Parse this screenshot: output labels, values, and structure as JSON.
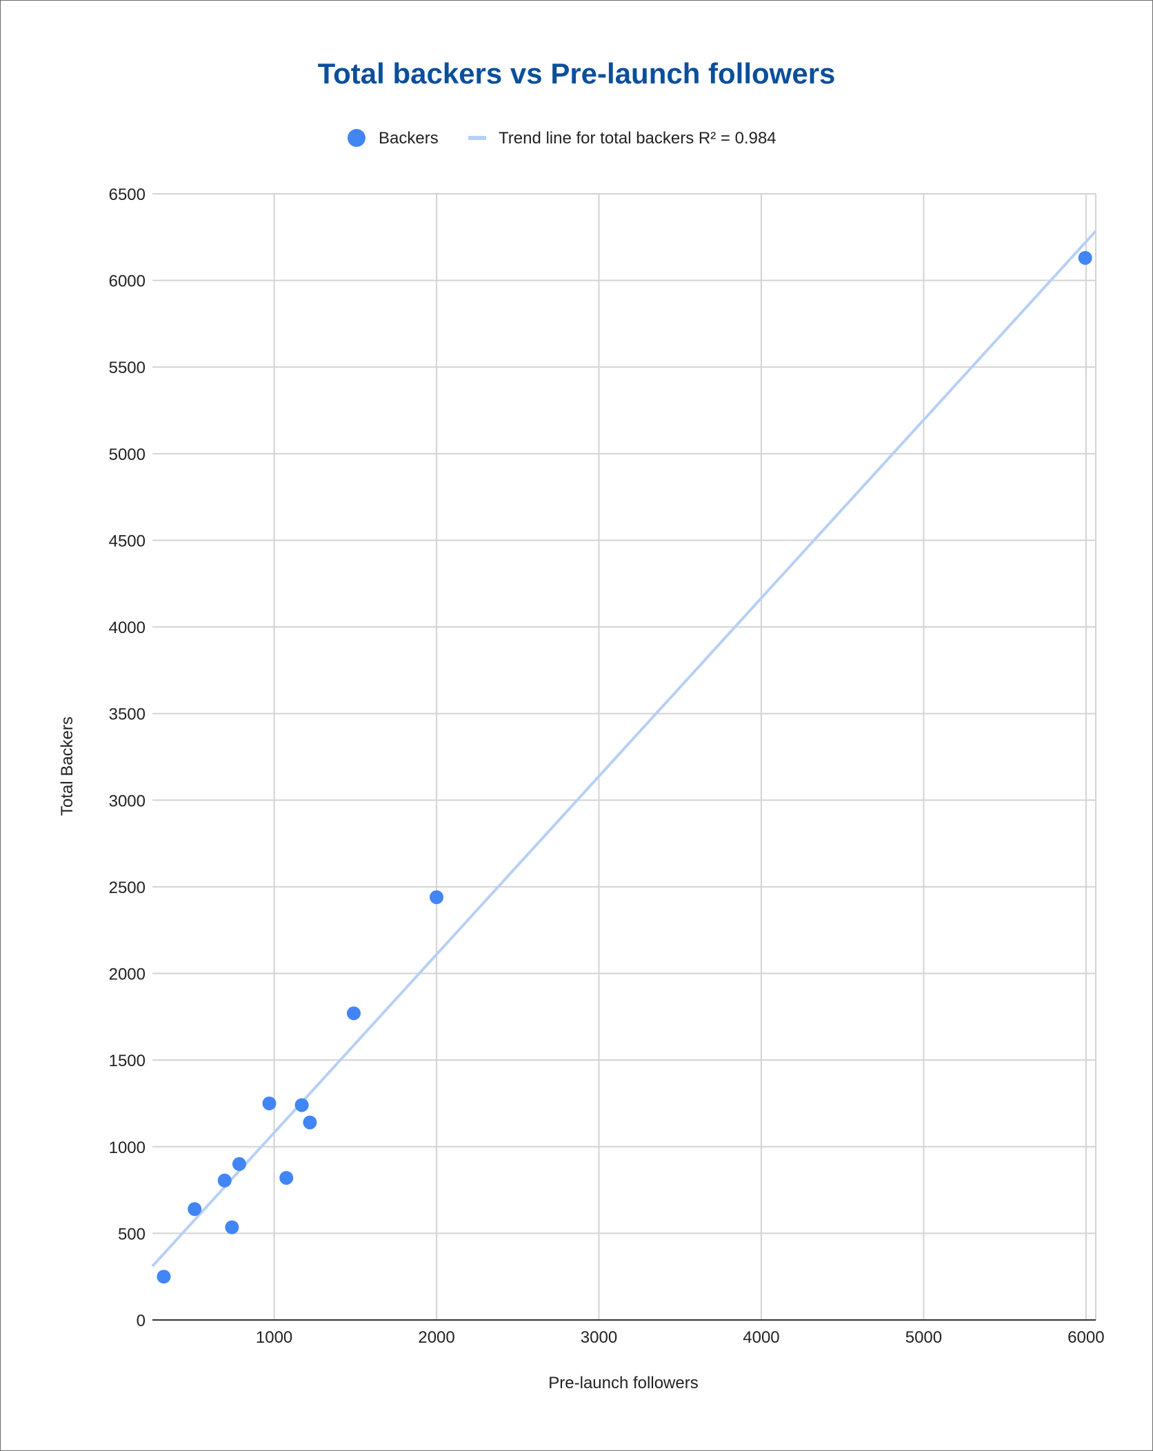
{
  "chart_data": {
    "type": "scatter",
    "title": "Total backers vs Pre-launch followers",
    "xlabel": "Pre-launch followers",
    "ylabel": "Total Backers",
    "xlim": [
      250,
      6060
    ],
    "ylim": [
      0,
      6500
    ],
    "x_ticks": [
      1000,
      2000,
      3000,
      4000,
      5000,
      6000
    ],
    "y_ticks": [
      0,
      500,
      1000,
      1500,
      2000,
      2500,
      3000,
      3500,
      4000,
      4500,
      5000,
      5500,
      6000,
      6500
    ],
    "grid": true,
    "legend_position": "top",
    "series": [
      {
        "name": "Backers",
        "color": "#4285f4",
        "points": [
          {
            "x": 320,
            "y": 250
          },
          {
            "x": 510,
            "y": 640
          },
          {
            "x": 695,
            "y": 805
          },
          {
            "x": 740,
            "y": 535
          },
          {
            "x": 785,
            "y": 900
          },
          {
            "x": 970,
            "y": 1250
          },
          {
            "x": 1075,
            "y": 820
          },
          {
            "x": 1170,
            "y": 1240
          },
          {
            "x": 1220,
            "y": 1140
          },
          {
            "x": 1490,
            "y": 1770
          },
          {
            "x": 2000,
            "y": 2440
          },
          {
            "x": 5995,
            "y": 6130
          }
        ]
      }
    ],
    "trendline": {
      "name": "Trend line for total backers R² = 0.984",
      "color": "#b7d0f4",
      "start": {
        "x": 250,
        "y": 310
      },
      "end": {
        "x": 6060,
        "y": 6285
      }
    }
  }
}
